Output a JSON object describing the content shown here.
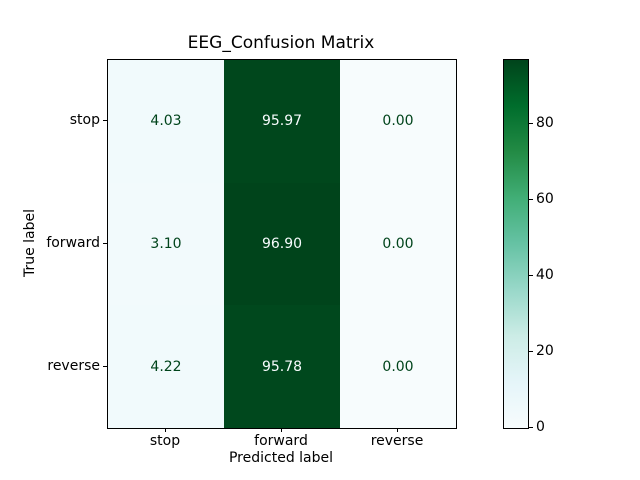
{
  "figure": {
    "background": "#ffffff"
  },
  "chart_data": {
    "type": "heatmap",
    "title": "EEG_Confusion Matrix",
    "xlabel": "Predicted label",
    "ylabel": "True label",
    "x_categories": [
      "stop",
      "forward",
      "reverse"
    ],
    "y_categories": [
      "stop",
      "forward",
      "reverse"
    ],
    "values": [
      [
        4.03,
        95.97,
        0.0
      ],
      [
        3.1,
        96.9,
        0.0
      ],
      [
        4.22,
        95.78,
        0.0
      ]
    ],
    "value_labels": [
      [
        "4.03",
        "95.97",
        "0.00"
      ],
      [
        "3.10",
        "96.90",
        "0.00"
      ],
      [
        "4.22",
        "95.78",
        "0.00"
      ]
    ],
    "cell_colors": [
      [
        "#f1fafc",
        "#00471c",
        "#f7fcfd"
      ],
      [
        "#f2fafc",
        "#00441b",
        "#f7fcfd"
      ],
      [
        "#f1fafc",
        "#00481d",
        "#f7fcfd"
      ]
    ],
    "cell_text_colors": [
      [
        "#00441b",
        "#f7fcfd",
        "#00441b"
      ],
      [
        "#00441b",
        "#f7fcfd",
        "#00441b"
      ],
      [
        "#00441b",
        "#f7fcfd",
        "#00441b"
      ]
    ],
    "colormap": "BuGn",
    "vmin": 0,
    "vmax": 96.9,
    "grid": false,
    "legend": false,
    "colorbar": {
      "position": "right",
      "ticks": [
        0,
        20,
        40,
        60,
        80
      ],
      "gradient_stops": [
        "#f7fcfd",
        "#e5f5f9",
        "#ccece6",
        "#99d8c9",
        "#66c2a4",
        "#41ae76",
        "#238b45",
        "#006d2c",
        "#00441b"
      ]
    }
  }
}
